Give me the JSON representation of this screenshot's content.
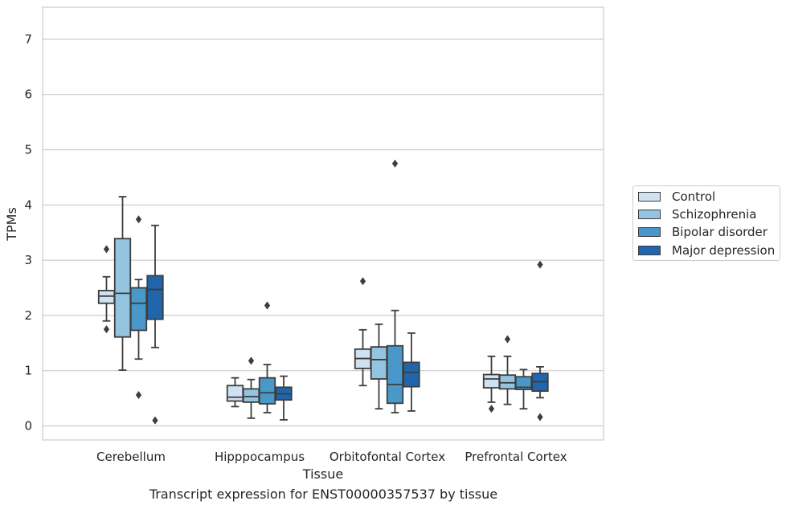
{
  "chart_data": {
    "type": "boxplot",
    "title": "",
    "caption": "Transcript expression for ENST00000357537 by tissue",
    "xlabel": "Tissue",
    "ylabel": "TPMs",
    "ylim": [
      -0.25,
      7.6
    ],
    "yticks": [
      0,
      1,
      2,
      3,
      4,
      5,
      6,
      7
    ],
    "grid": "horizontal",
    "legend_position": "right",
    "categories": [
      "Cerebellum",
      "Hipppocampus",
      "Orbitofontal Cortex",
      "Prefrontal Cortex"
    ],
    "series": [
      {
        "name": "Control",
        "color": "#d0e1f2",
        "boxes": [
          {
            "whisker_low": 1.9,
            "q1": 2.22,
            "median": 2.35,
            "q3": 2.45,
            "whisker_high": 2.7,
            "outliers": [
              3.2,
              1.75
            ]
          },
          {
            "whisker_low": 0.35,
            "q1": 0.45,
            "median": 0.52,
            "q3": 0.73,
            "whisker_high": 0.87,
            "outliers": []
          },
          {
            "whisker_low": 0.73,
            "q1": 1.04,
            "median": 1.22,
            "q3": 1.39,
            "whisker_high": 1.74,
            "outliers": [
              2.62
            ]
          },
          {
            "whisker_low": 0.43,
            "q1": 0.69,
            "median": 0.85,
            "q3": 0.93,
            "whisker_high": 1.26,
            "outliers": [
              0.31
            ]
          }
        ]
      },
      {
        "name": "Schizophrenia",
        "color": "#94c4df",
        "boxes": [
          {
            "whisker_low": 1.01,
            "q1": 1.61,
            "median": 2.4,
            "q3": 3.39,
            "whisker_high": 4.15,
            "outliers": []
          },
          {
            "whisker_low": 0.14,
            "q1": 0.43,
            "median": 0.53,
            "q3": 0.67,
            "whisker_high": 0.84,
            "outliers": [
              1.18
            ]
          },
          {
            "whisker_low": 0.31,
            "q1": 0.85,
            "median": 1.2,
            "q3": 1.43,
            "whisker_high": 1.84,
            "outliers": []
          },
          {
            "whisker_low": 0.39,
            "q1": 0.67,
            "median": 0.78,
            "q3": 0.92,
            "whisker_high": 1.26,
            "outliers": [
              1.57
            ]
          }
        ]
      },
      {
        "name": "Bipolar disorder",
        "color": "#4a98c9",
        "boxes": [
          {
            "whisker_low": 1.21,
            "q1": 1.73,
            "median": 2.22,
            "q3": 2.5,
            "whisker_high": 2.65,
            "outliers": [
              3.74,
              0.56
            ]
          },
          {
            "whisker_low": 0.24,
            "q1": 0.4,
            "median": 0.6,
            "q3": 0.87,
            "whisker_high": 1.11,
            "outliers": [
              2.18
            ]
          },
          {
            "whisker_low": 0.24,
            "q1": 0.41,
            "median": 0.75,
            "q3": 1.45,
            "whisker_high": 2.09,
            "outliers": [
              4.75
            ]
          },
          {
            "whisker_low": 0.31,
            "q1": 0.66,
            "median": 0.7,
            "q3": 0.89,
            "whisker_high": 1.02,
            "outliers": []
          }
        ]
      },
      {
        "name": "Major depression",
        "color": "#2166ac",
        "boxes": [
          {
            "whisker_low": 1.42,
            "q1": 1.93,
            "median": 2.47,
            "q3": 2.72,
            "whisker_high": 3.63,
            "outliers": [
              0.1
            ]
          },
          {
            "whisker_low": 0.11,
            "q1": 0.47,
            "median": 0.58,
            "q3": 0.7,
            "whisker_high": 0.9,
            "outliers": []
          },
          {
            "whisker_low": 0.27,
            "q1": 0.71,
            "median": 0.97,
            "q3": 1.15,
            "whisker_high": 1.68,
            "outliers": []
          },
          {
            "whisker_low": 0.51,
            "q1": 0.63,
            "median": 0.8,
            "q3": 0.95,
            "whisker_high": 1.07,
            "outliers": [
              2.92,
              0.16
            ]
          }
        ]
      }
    ]
  }
}
